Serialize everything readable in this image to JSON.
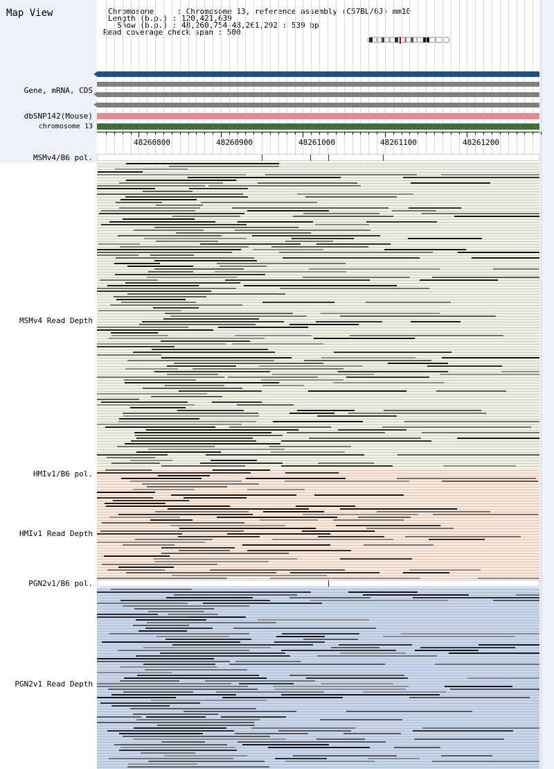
{
  "title": "Map View",
  "info": {
    "chromosome": "Chromosome     : Chromosome 13, reference assembly (C57BL/6J) mm10",
    "length": "Length (b.p.) : 120,421,639",
    "show": "  Show (b.p.) : 48,260,754-48,261,292 : 539 bp",
    "span": "Read coverage check span : 500"
  },
  "tracks": {
    "gene": "Gene, mRNA, CDS",
    "snp": "dbSNP142(Mouse)",
    "chrom": "chromosome 13",
    "msm_pol": "MSMv4/B6 pol.",
    "msm_depth": "MSMv4 Read Depth",
    "hmi_pol": "HMIv1/B6 pol.",
    "hmi_depth": "HMIv1 Read Depth",
    "pgn_pol": "PGN2v1/B6 pol.",
    "pgn_depth": "PGN2v1 Read Depth"
  },
  "axis": {
    "ticks": [
      "48260800",
      "48260900",
      "48261000",
      "48261100",
      "48261200"
    ]
  },
  "colors": {
    "gene_bar": "#1f4e8c",
    "transcript": "#7f7f7f",
    "snp_bar": "#e88a96",
    "chrom_bar": "#3f6e2f",
    "msm_bg": "#eef2e2",
    "hmi_bg": "#fde9da",
    "pgn_bg": "#c6d7ee",
    "snp_mark": "#b00000"
  }
}
